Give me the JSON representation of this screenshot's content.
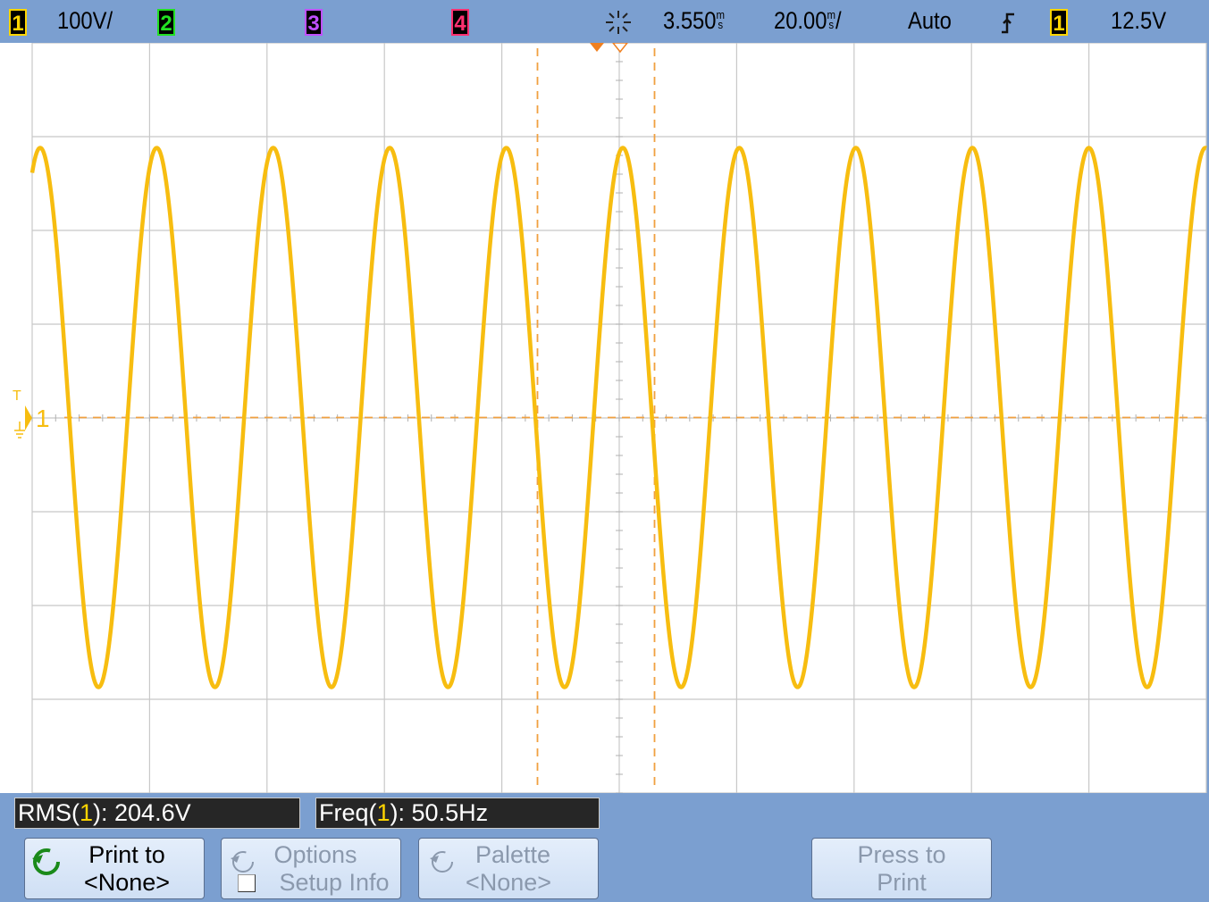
{
  "top_bar": {
    "channels": [
      {
        "label": "1",
        "scale": "100V/"
      },
      {
        "label": "2"
      },
      {
        "label": "3"
      },
      {
        "label": "4"
      }
    ],
    "delay": "3.550",
    "delay_unit": [
      "m",
      "s"
    ],
    "timebase": "20.00",
    "timebase_unit": [
      "m",
      "s"
    ],
    "timebase_suffix": "/",
    "mode": "Auto",
    "trigger_source": "1",
    "trigger_level": "12.5V"
  },
  "ground_marker": "1",
  "measurements": [
    {
      "name": "RMS(",
      "channel": "1",
      "value": "): 204.6V"
    },
    {
      "name": "Freq(",
      "channel": "1",
      "value": "): 50.5Hz"
    }
  ],
  "softkeys": [
    {
      "line1": "Print to",
      "line2": "<None>"
    },
    {
      "line1": "Options",
      "line2": "Setup Info"
    },
    {
      "line1": "Palette",
      "line2": "<None>"
    },
    {
      "line1": "Press to",
      "line2": "Print"
    }
  ]
}
